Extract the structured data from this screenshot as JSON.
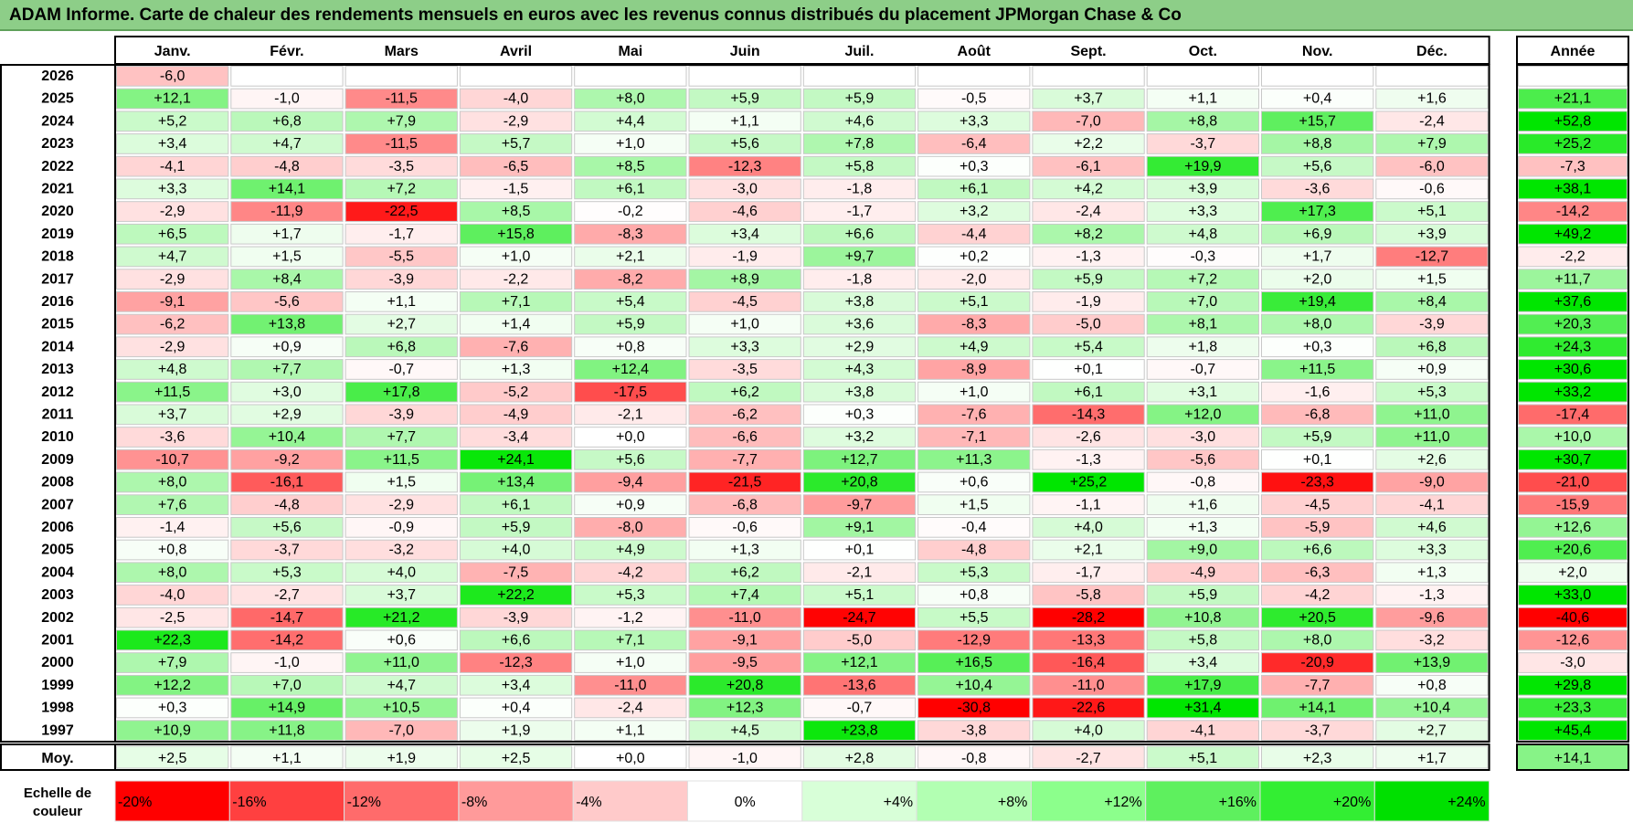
{
  "title": "ADAM Informe. Carte de chaleur des rendements mensuels en euros avec les revenus connus distribués du placement JPMorgan Chase & Co",
  "chart_data": {
    "type": "heatmap",
    "title": "ADAM Informe. Carte de chaleur des rendements mensuels en euros avec les revenus connus distribués du placement JPMorgan Chase & Co",
    "columns": [
      "Janv.",
      "Févr.",
      "Mars",
      "Avril",
      "Mai",
      "Juin",
      "Juil.",
      "Août",
      "Sept.",
      "Oct.",
      "Nov.",
      "Déc."
    ],
    "year_column_label": "Année",
    "years": [
      "2026",
      "2025",
      "2024",
      "2023",
      "2022",
      "2021",
      "2020",
      "2019",
      "2018",
      "2017",
      "2016",
      "2015",
      "2014",
      "2013",
      "2012",
      "2011",
      "2010",
      "2009",
      "2008",
      "2007",
      "2006",
      "2005",
      "2004",
      "2003",
      "2002",
      "2001",
      "2000",
      "1999",
      "1998",
      "1997"
    ],
    "values": [
      [
        "-6,0",
        "",
        "",
        "",
        "",
        "",
        "",
        "",
        "",
        "",
        "",
        ""
      ],
      [
        "+12,1",
        "-1,0",
        "-11,5",
        "-4,0",
        "+8,0",
        "+5,9",
        "+5,9",
        "-0,5",
        "+3,7",
        "+1,1",
        "+0,4",
        "+1,6"
      ],
      [
        "+5,2",
        "+6,8",
        "+7,9",
        "-2,9",
        "+4,4",
        "+1,1",
        "+4,6",
        "+3,3",
        "-7,0",
        "+8,8",
        "+15,7",
        "-2,4"
      ],
      [
        "+3,4",
        "+4,7",
        "-11,5",
        "+5,7",
        "+1,0",
        "+5,6",
        "+7,8",
        "-6,4",
        "+2,2",
        "-3,7",
        "+8,8",
        "+7,9"
      ],
      [
        "-4,1",
        "-4,8",
        "-3,5",
        "-6,5",
        "+8,5",
        "-12,3",
        "+5,8",
        "+0,3",
        "-6,1",
        "+19,9",
        "+5,6",
        "-6,0"
      ],
      [
        "+3,3",
        "+14,1",
        "+7,2",
        "-1,5",
        "+6,1",
        "-3,0",
        "-1,8",
        "+6,1",
        "+4,2",
        "+3,9",
        "-3,6",
        "-0,6"
      ],
      [
        "-2,9",
        "-11,9",
        "-22,5",
        "+8,5",
        "-0,2",
        "-4,6",
        "-1,7",
        "+3,2",
        "-2,4",
        "+3,3",
        "+17,3",
        "+5,1"
      ],
      [
        "+6,5",
        "+1,7",
        "-1,7",
        "+15,8",
        "-8,3",
        "+3,4",
        "+6,6",
        "-4,4",
        "+8,2",
        "+4,8",
        "+6,9",
        "+3,9"
      ],
      [
        "+4,7",
        "+1,5",
        "-5,5",
        "+1,0",
        "+2,1",
        "-1,9",
        "+9,7",
        "+0,2",
        "-1,3",
        "-0,3",
        "+1,7",
        "-12,7"
      ],
      [
        "-2,9",
        "+8,4",
        "-3,9",
        "-2,2",
        "-8,2",
        "+8,9",
        "-1,8",
        "-2,0",
        "+5,9",
        "+7,2",
        "+2,0",
        "+1,5"
      ],
      [
        "-9,1",
        "-5,6",
        "+1,1",
        "+7,1",
        "+5,4",
        "-4,5",
        "+3,8",
        "+5,1",
        "-1,9",
        "+7,0",
        "+19,4",
        "+8,4"
      ],
      [
        "-6,2",
        "+13,8",
        "+2,7",
        "+1,4",
        "+5,9",
        "+1,0",
        "+3,6",
        "-8,3",
        "-5,0",
        "+8,1",
        "+8,0",
        "-3,9"
      ],
      [
        "-2,9",
        "+0,9",
        "+6,8",
        "-7,6",
        "+0,8",
        "+3,3",
        "+2,9",
        "+4,9",
        "+5,4",
        "+1,8",
        "+0,3",
        "+6,8"
      ],
      [
        "+4,8",
        "+7,7",
        "-0,7",
        "+1,3",
        "+12,4",
        "-3,5",
        "+4,3",
        "-8,9",
        "+0,1",
        "-0,7",
        "+11,5",
        "+0,9"
      ],
      [
        "+11,5",
        "+3,0",
        "+17,8",
        "-5,2",
        "-17,5",
        "+6,2",
        "+3,8",
        "+1,0",
        "+6,1",
        "+3,1",
        "-1,6",
        "+5,3"
      ],
      [
        "+3,7",
        "+2,9",
        "-3,9",
        "-4,9",
        "-2,1",
        "-6,2",
        "+0,3",
        "-7,6",
        "-14,3",
        "+12,0",
        "-6,8",
        "+11,0"
      ],
      [
        "-3,6",
        "+10,4",
        "+7,7",
        "-3,4",
        "+0,0",
        "-6,6",
        "+3,2",
        "-7,1",
        "-2,6",
        "-3,0",
        "+5,9",
        "+11,0"
      ],
      [
        "-10,7",
        "-9,2",
        "+11,5",
        "+24,1",
        "+5,6",
        "-7,7",
        "+12,7",
        "+11,3",
        "-1,3",
        "-5,6",
        "+0,1",
        "+2,6"
      ],
      [
        "+8,0",
        "-16,1",
        "+1,5",
        "+13,4",
        "-9,4",
        "-21,5",
        "+20,8",
        "+0,6",
        "+25,2",
        "-0,8",
        "-23,3",
        "-9,0"
      ],
      [
        "+7,6",
        "-4,8",
        "-2,9",
        "+6,1",
        "+0,9",
        "-6,8",
        "-9,7",
        "+1,5",
        "-1,1",
        "+1,6",
        "-4,5",
        "-4,1"
      ],
      [
        "-1,4",
        "+5,6",
        "-0,9",
        "+5,9",
        "-8,0",
        "-0,6",
        "+9,1",
        "-0,4",
        "+4,0",
        "+1,3",
        "-5,9",
        "+4,6"
      ],
      [
        "+0,8",
        "-3,7",
        "-3,2",
        "+4,0",
        "+4,9",
        "+1,3",
        "+0,1",
        "-4,8",
        "+2,1",
        "+9,0",
        "+6,6",
        "+3,3"
      ],
      [
        "+8,0",
        "+5,3",
        "+4,0",
        "-7,5",
        "-4,2",
        "+6,2",
        "-2,1",
        "+5,3",
        "-1,7",
        "-4,9",
        "-6,3",
        "+1,3"
      ],
      [
        "-4,0",
        "-2,7",
        "+3,7",
        "+22,2",
        "+5,3",
        "+7,4",
        "+5,1",
        "+0,8",
        "-5,8",
        "+5,9",
        "-4,2",
        "-1,3"
      ],
      [
        "-2,5",
        "-14,7",
        "+21,2",
        "-3,9",
        "-1,2",
        "-11,0",
        "-24,7",
        "+5,5",
        "-28,2",
        "+10,8",
        "+20,5",
        "-9,6"
      ],
      [
        "+22,3",
        "-14,2",
        "+0,6",
        "+6,6",
        "+7,1",
        "-9,1",
        "-5,0",
        "-12,9",
        "-13,3",
        "+5,8",
        "+8,0",
        "-3,2"
      ],
      [
        "+7,9",
        "-1,0",
        "+11,0",
        "-12,3",
        "+1,0",
        "-9,5",
        "+12,1",
        "+16,5",
        "-16,4",
        "+3,4",
        "-20,9",
        "+13,9"
      ],
      [
        "+12,2",
        "+7,0",
        "+4,7",
        "+3,4",
        "-11,0",
        "+20,8",
        "-13,6",
        "+10,4",
        "-11,0",
        "+17,9",
        "-7,7",
        "+0,8"
      ],
      [
        "+0,3",
        "+14,9",
        "+10,5",
        "+0,4",
        "-2,4",
        "+12,3",
        "-0,7",
        "-30,8",
        "-22,6",
        "+31,4",
        "+14,1",
        "+10,4"
      ],
      [
        "+10,9",
        "+11,8",
        "-7,0",
        "+1,9",
        "+1,1",
        "+4,5",
        "+23,8",
        "-3,8",
        "+4,0",
        "-4,1",
        "-3,7",
        "+2,7"
      ]
    ],
    "annual": [
      "",
      "+21,1",
      "+52,8",
      "+25,2",
      "-7,3",
      "+38,1",
      "-14,2",
      "+49,2",
      "-2,2",
      "+11,7",
      "+37,6",
      "+20,3",
      "+24,3",
      "+30,6",
      "+33,2",
      "-17,4",
      "+10,0",
      "+30,7",
      "-21,0",
      "-15,9",
      "+12,6",
      "+20,6",
      "+2,0",
      "+33,0",
      "-40,6",
      "-12,6",
      "-3,0",
      "+29,8",
      "+23,3",
      "+45,4"
    ],
    "average_label": "Moy.",
    "averages": [
      "+2,5",
      "+1,1",
      "+1,9",
      "+2,5",
      "+0,0",
      "-1,0",
      "+2,8",
      "-0,8",
      "-2,7",
      "+5,1",
      "+2,3",
      "+1,7"
    ],
    "average_annual": "+14,1",
    "scale_label_line1": "Echelle de",
    "scale_label_line2": "couleur",
    "scale": [
      "-20%",
      "-16%",
      "-12%",
      "-8%",
      "-4%",
      "0%",
      "+4%",
      "+8%",
      "+12%",
      "+16%",
      "+20%",
      "+24%"
    ],
    "scale_colors": [
      "#ff0000",
      "#ff4040",
      "#ff6b6b",
      "#ff9a9a",
      "#ffcaca",
      "#ffffff",
      "#d8ffd8",
      "#b2ffb2",
      "#8cff8c",
      "#5ef05e",
      "#33ee33",
      "#00e000"
    ]
  }
}
